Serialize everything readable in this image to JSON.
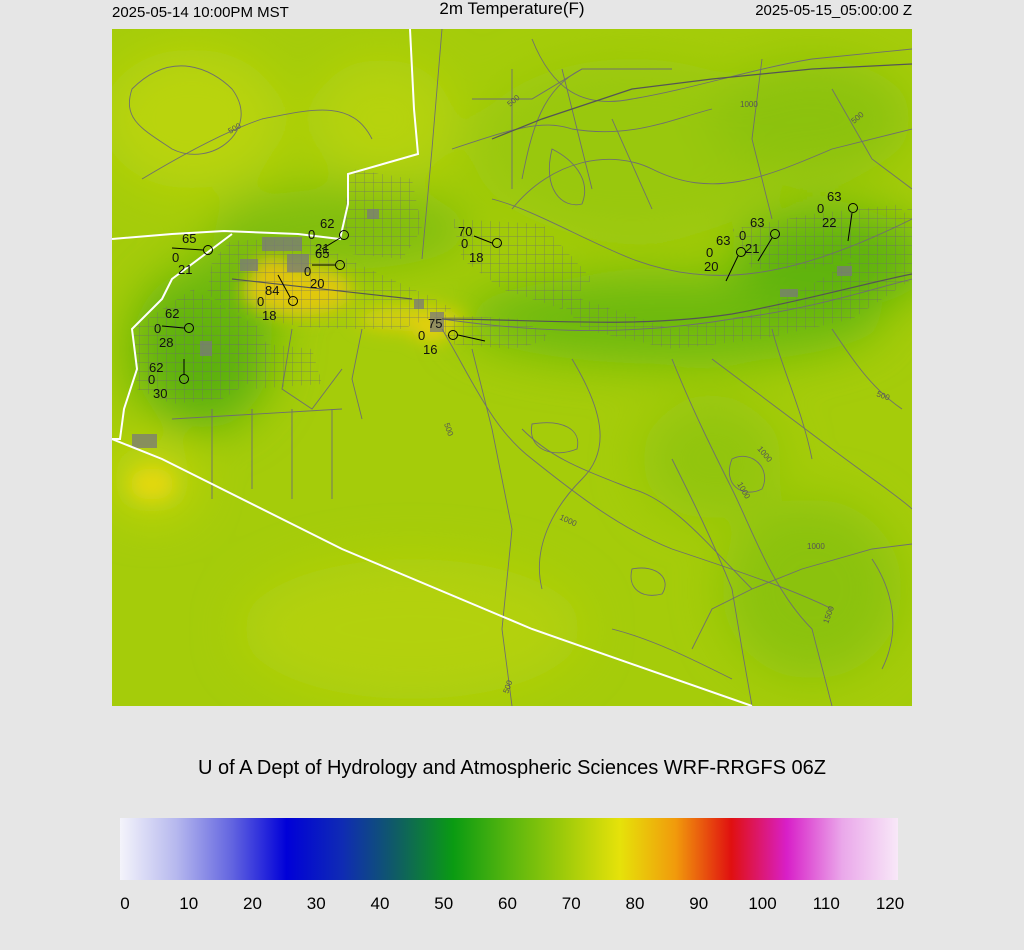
{
  "header": {
    "local_time": "2025-05-14 10:00PM MST",
    "title": "2m Temperature(F)",
    "utc_time": "2025-05-15_05:00:00 Z"
  },
  "credit": "U of A Dept of Hydrology and Atmospheric Sciences WRF-RRGFS 06Z",
  "colorbar": {
    "ticks": [
      "0",
      "10",
      "20",
      "30",
      "40",
      "50",
      "60",
      "70",
      "80",
      "90",
      "100",
      "110",
      "120"
    ],
    "min": 0,
    "max": 120,
    "colors": [
      "#f4f4fb",
      "#b7b9ee",
      "#6466e0",
      "#0000d8",
      "#0f2bb4",
      "#0f5e62",
      "#0a9b12",
      "#58b60e",
      "#9fcb0a",
      "#e6e20a",
      "#f19a0c",
      "#e01010",
      "#d81fc8",
      "#eaa8ea",
      "#f8e8f8"
    ]
  },
  "contour_labels": [
    "500",
    "500",
    "1000",
    "500",
    "500",
    "1000",
    "1000",
    "1000",
    "500",
    "1000",
    "1500",
    "500"
  ],
  "stations": [
    {
      "temp": "65",
      "dir": "0",
      "dew": "21"
    },
    {
      "temp": "62",
      "dir": "0",
      "dew": "21"
    },
    {
      "temp": "65",
      "dir": "0",
      "dew": "20"
    },
    {
      "temp": "84",
      "dir": "0",
      "dew": "18"
    },
    {
      "temp": "62",
      "dir": "0",
      "dew": "28"
    },
    {
      "temp": "62",
      "dir": "0",
      "dew": "30"
    },
    {
      "temp": "70",
      "dir": "0",
      "dew": "18"
    },
    {
      "temp": "75",
      "dir": "0",
      "dew": "16"
    },
    {
      "temp": "63",
      "dir": "0",
      "dew": "20"
    },
    {
      "temp": "63",
      "dir": "0",
      "dew": "21"
    },
    {
      "temp": "63",
      "dir": "0",
      "dew": "22"
    }
  ]
}
